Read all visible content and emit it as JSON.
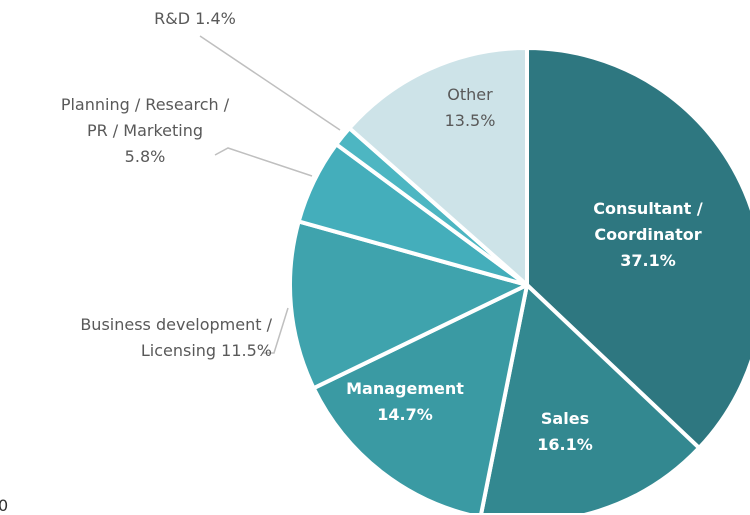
{
  "chart_data": {
    "type": "pie",
    "categories": [
      "Consultant / Coordinator",
      "Sales",
      "Management",
      "Business development / Licensing",
      "Planning / Research / PR / Marketing",
      "R&D",
      "Other"
    ],
    "values": [
      37.1,
      16.1,
      14.7,
      11.5,
      5.8,
      1.4,
      13.5
    ],
    "value_labels": [
      "37.1%",
      "16.1%",
      "14.7%",
      "11.5%",
      "5.8%",
      "1.4%",
      "13.5%"
    ],
    "colors": [
      "#2e7780",
      "#338890",
      "#3a9aa3",
      "#3fa3ad",
      "#44aebb",
      "#4db6c2",
      "#cde3e8"
    ],
    "fragment": "0"
  }
}
